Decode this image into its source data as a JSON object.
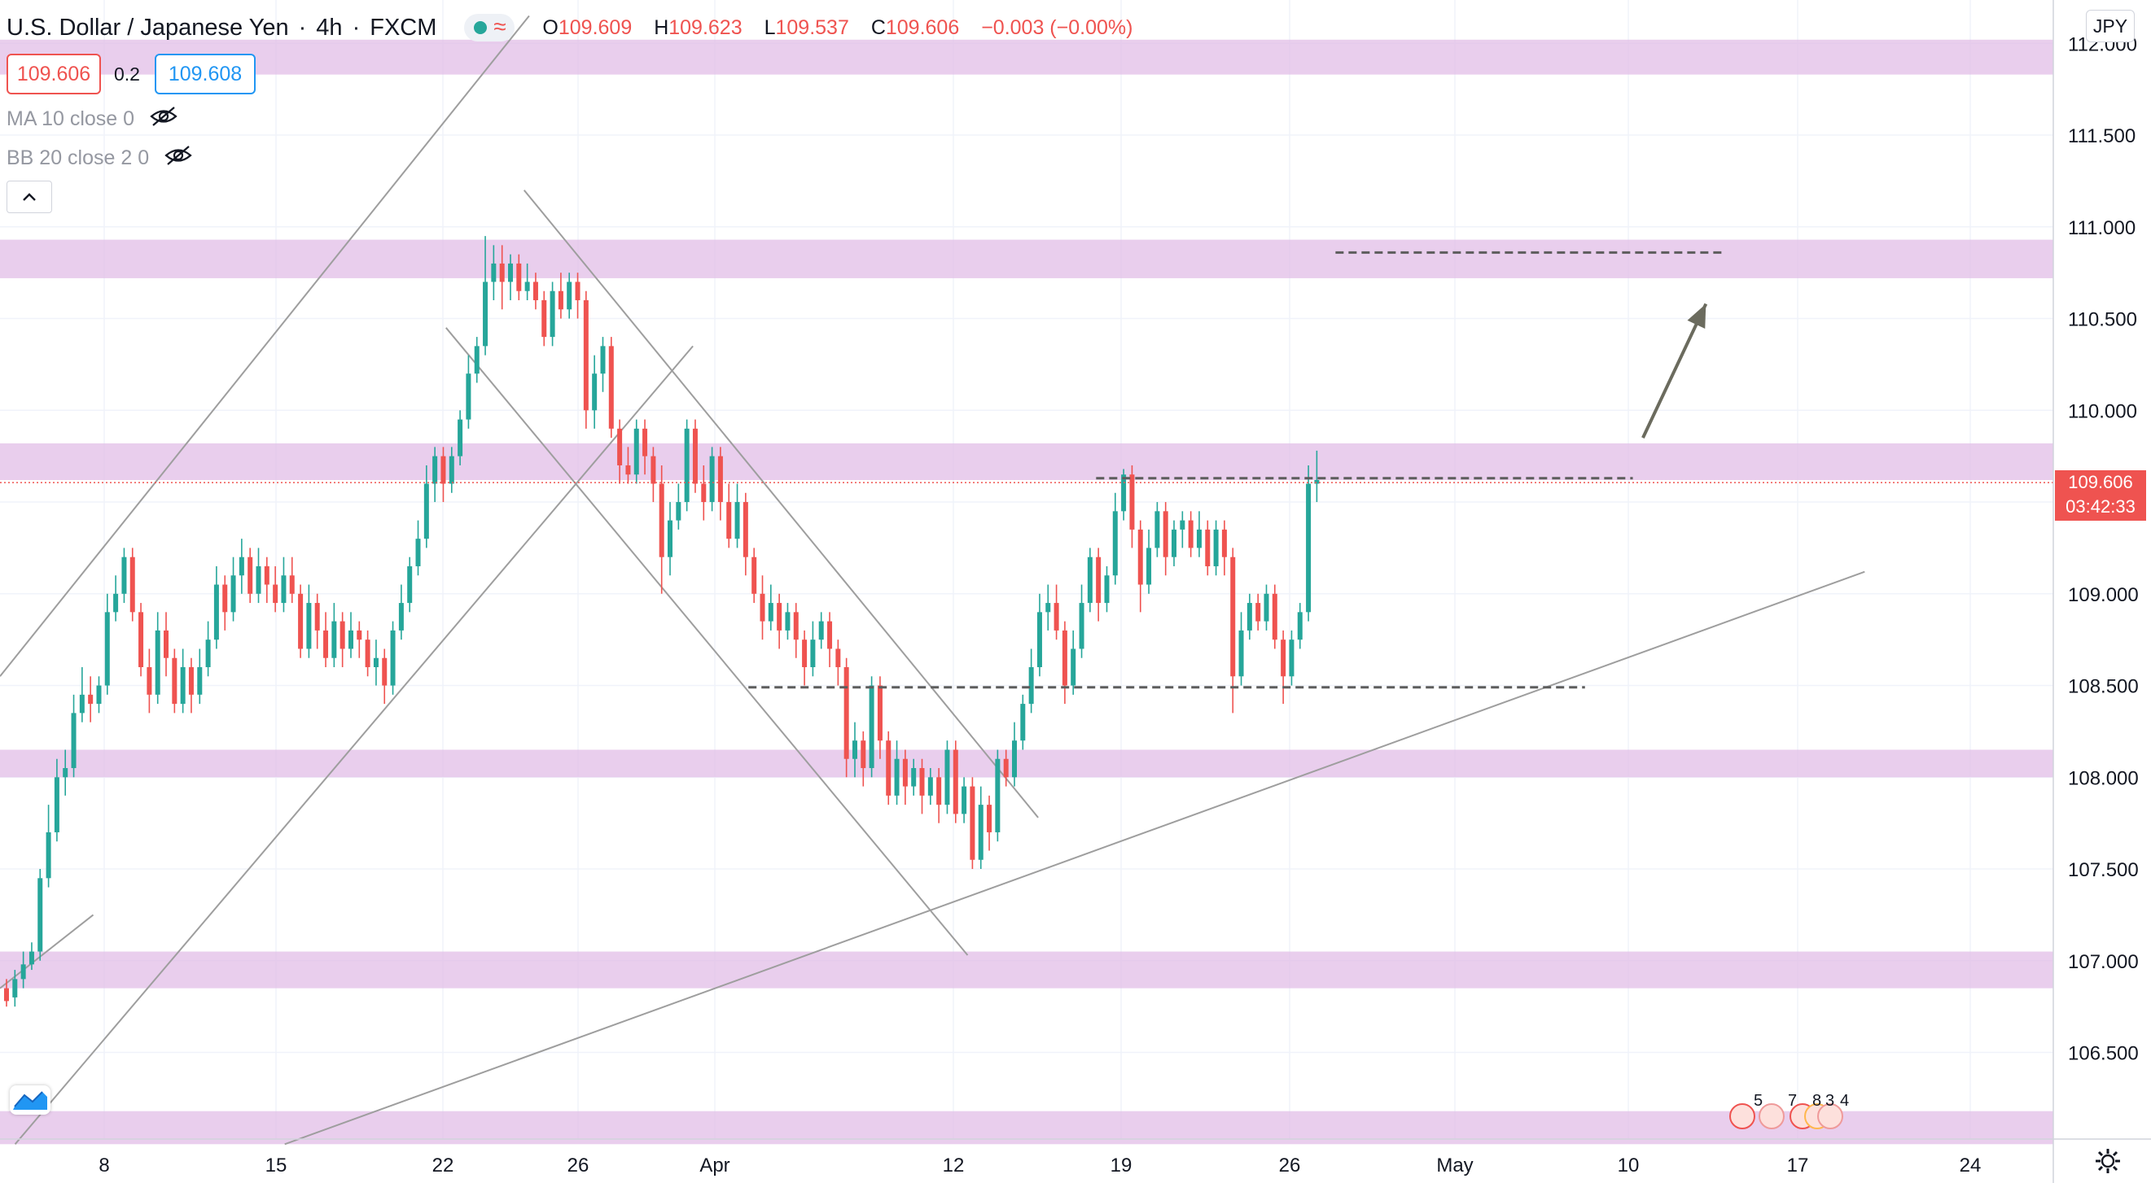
{
  "header": {
    "symbol": "U.S. Dollar / Japanese Yen",
    "interval": "4h",
    "source": "FXCM",
    "ohlc": {
      "o_label": "O",
      "o": "109.609",
      "h_label": "H",
      "h": "109.623",
      "l_label": "L",
      "l": "109.537",
      "c_label": "C",
      "c": "109.606",
      "change": "−0.003 (−0.00%)"
    }
  },
  "trade": {
    "sell_price": "109.606",
    "spread": "0.2",
    "buy_price": "109.608"
  },
  "indicators": [
    {
      "label": "MA 10 close 0"
    },
    {
      "label": "BB 20 close 2 0"
    }
  ],
  "currency_badge": "JPY",
  "last_price": {
    "value": "109.606",
    "countdown": "03:42:33"
  },
  "events": [
    "5",
    "7",
    "8",
    "3",
    "4"
  ],
  "colors": {
    "up": "#26a69a",
    "down": "#ef5350",
    "zone": "#e1bee7",
    "accent": "#2196f3",
    "line": "#9e9e9e"
  },
  "icons": [
    "eye-off-icon",
    "chevron-up-icon",
    "tradingview-logo-icon",
    "gear-icon",
    "arrow-up-icon"
  ],
  "chart_data": {
    "type": "candlestick",
    "title": "U.S. Dollar / Japanese Yen, 4h, FXCM",
    "y_ticks": [
      "106.500",
      "107.000",
      "107.500",
      "108.000",
      "108.500",
      "109.000",
      "109.500",
      "110.000",
      "110.500",
      "111.000",
      "111.500",
      "112.000"
    ],
    "x_ticks": [
      "8",
      "15",
      "22",
      "26",
      "Apr",
      "12",
      "19",
      "26",
      "May",
      "10",
      "17",
      "24"
    ],
    "ylim": [
      106.0,
      112.3
    ],
    "grid": true,
    "support_resistance_zones": [
      [
        111.83,
        112.02
      ],
      [
        110.72,
        110.93
      ],
      [
        109.62,
        109.82
      ],
      [
        108.0,
        108.15
      ],
      [
        106.85,
        107.05
      ],
      [
        106.0,
        106.18
      ]
    ],
    "horizontal_dashed_levels": [
      {
        "from": "Mar 29 day 0",
        "y": 108.49,
        "from_day": 29.7,
        "to_day": 62.9
      },
      {
        "y": 109.63,
        "from_day": 43.5,
        "to_day": 64.8
      },
      {
        "y": 110.86,
        "from_day": 53.0,
        "to_day": 68.5
      }
    ],
    "trendlines": [
      {
        "day1": 0.0,
        "y1": 108.55,
        "day2": 21.0,
        "y2": 112.15
      },
      {
        "day1": 0.6,
        "y1": 106.0,
        "day2": 27.5,
        "y2": 110.35
      },
      {
        "day1": 0.0,
        "y1": 106.85,
        "day2": 3.7,
        "y2": 107.25
      },
      {
        "day1": 11.3,
        "y1": 106.0,
        "day2": 74.0,
        "y2": 109.12
      },
      {
        "day1": 17.7,
        "y1": 110.45,
        "day2": 38.4,
        "y2": 107.03
      },
      {
        "day1": 20.8,
        "y1": 111.2,
        "day2": 41.2,
        "y2": 107.78
      }
    ],
    "projection_arrow": {
      "day1": 65.2,
      "y1": 109.85,
      "day2": 67.7,
      "y2": 110.58
    },
    "candles": [
      [
        0.0,
        106.85,
        106.78,
        106.9,
        106.75
      ],
      [
        0.333,
        106.8,
        106.9,
        106.95,
        106.75
      ],
      [
        0.667,
        106.9,
        106.98,
        107.05,
        106.85
      ],
      [
        1.0,
        106.98,
        107.05,
        107.1,
        106.95
      ],
      [
        1.333,
        107.05,
        107.45,
        107.5,
        107.0
      ],
      [
        1.667,
        107.45,
        107.7,
        107.85,
        107.4
      ],
      [
        2.0,
        107.7,
        108.0,
        108.1,
        107.65
      ],
      [
        2.333,
        108.0,
        108.05,
        108.15,
        107.9
      ],
      [
        2.667,
        108.05,
        108.35,
        108.45,
        108.0
      ],
      [
        3.0,
        108.35,
        108.45,
        108.6,
        108.3
      ],
      [
        3.333,
        108.45,
        108.4,
        108.55,
        108.3
      ],
      [
        3.667,
        108.4,
        108.5,
        108.55,
        108.35
      ],
      [
        4.0,
        108.5,
        108.9,
        109.0,
        108.45
      ],
      [
        4.333,
        108.9,
        109.0,
        109.1,
        108.85
      ],
      [
        4.667,
        109.0,
        109.2,
        109.25,
        108.95
      ],
      [
        5.0,
        109.2,
        108.9,
        109.25,
        108.85
      ],
      [
        5.333,
        108.9,
        108.6,
        108.95,
        108.55
      ],
      [
        5.667,
        108.6,
        108.45,
        108.7,
        108.35
      ],
      [
        6.0,
        108.45,
        108.8,
        108.9,
        108.4
      ],
      [
        6.333,
        108.8,
        108.65,
        108.9,
        108.55
      ],
      [
        6.667,
        108.65,
        108.4,
        108.7,
        108.35
      ],
      [
        7.0,
        108.4,
        108.6,
        108.7,
        108.35
      ],
      [
        7.333,
        108.6,
        108.45,
        108.65,
        108.35
      ],
      [
        7.667,
        108.45,
        108.6,
        108.7,
        108.4
      ],
      [
        8.0,
        108.6,
        108.75,
        108.85,
        108.55
      ],
      [
        8.333,
        108.75,
        109.05,
        109.15,
        108.7
      ],
      [
        8.667,
        109.05,
        108.9,
        109.1,
        108.8
      ],
      [
        9.0,
        108.9,
        109.1,
        109.2,
        108.85
      ],
      [
        9.333,
        109.1,
        109.2,
        109.3,
        109.0
      ],
      [
        9.667,
        109.2,
        109.0,
        109.25,
        108.95
      ],
      [
        10.0,
        109.0,
        109.15,
        109.25,
        108.95
      ],
      [
        10.333,
        109.15,
        109.05,
        109.2,
        108.95
      ],
      [
        10.667,
        109.05,
        108.95,
        109.15,
        108.9
      ],
      [
        11.0,
        108.95,
        109.1,
        109.2,
        108.9
      ],
      [
        11.333,
        109.1,
        109.0,
        109.2,
        108.95
      ],
      [
        11.667,
        109.0,
        108.7,
        109.05,
        108.65
      ],
      [
        12.0,
        108.7,
        108.95,
        109.05,
        108.65
      ],
      [
        12.333,
        108.95,
        108.8,
        109.0,
        108.7
      ],
      [
        12.667,
        108.8,
        108.65,
        108.9,
        108.6
      ],
      [
        13.0,
        108.65,
        108.85,
        108.95,
        108.6
      ],
      [
        13.333,
        108.85,
        108.7,
        108.9,
        108.6
      ],
      [
        13.667,
        108.7,
        108.8,
        108.9,
        108.65
      ],
      [
        14.0,
        108.8,
        108.75,
        108.85,
        108.65
      ],
      [
        14.333,
        108.75,
        108.6,
        108.8,
        108.55
      ],
      [
        14.667,
        108.6,
        108.65,
        108.75,
        108.5
      ],
      [
        15.0,
        108.65,
        108.5,
        108.7,
        108.4
      ],
      [
        15.333,
        108.5,
        108.8,
        108.85,
        108.45
      ],
      [
        15.667,
        108.8,
        108.95,
        109.05,
        108.75
      ],
      [
        16.0,
        108.95,
        109.15,
        109.2,
        108.9
      ],
      [
        16.333,
        109.15,
        109.3,
        109.4,
        109.1
      ],
      [
        16.667,
        109.3,
        109.6,
        109.7,
        109.25
      ],
      [
        17.0,
        109.6,
        109.75,
        109.8,
        109.5
      ],
      [
        17.333,
        109.75,
        109.6,
        109.8,
        109.5
      ],
      [
        17.667,
        109.6,
        109.75,
        109.8,
        109.55
      ],
      [
        18.0,
        109.75,
        109.95,
        110.0,
        109.7
      ],
      [
        18.333,
        109.95,
        110.2,
        110.3,
        109.9
      ],
      [
        18.667,
        110.2,
        110.35,
        110.4,
        110.15
      ],
      [
        19.0,
        110.35,
        110.7,
        110.95,
        110.3
      ],
      [
        19.333,
        110.7,
        110.8,
        110.9,
        110.6
      ],
      [
        19.667,
        110.8,
        110.7,
        110.9,
        110.55
      ],
      [
        20.0,
        110.7,
        110.8,
        110.85,
        110.6
      ],
      [
        20.333,
        110.8,
        110.65,
        110.85,
        110.6
      ],
      [
        20.667,
        110.65,
        110.7,
        110.8,
        110.6
      ],
      [
        21.0,
        110.7,
        110.6,
        110.75,
        110.55
      ],
      [
        21.333,
        110.6,
        110.4,
        110.65,
        110.35
      ],
      [
        21.667,
        110.4,
        110.65,
        110.7,
        110.35
      ],
      [
        22.0,
        110.65,
        110.55,
        110.75,
        110.5
      ],
      [
        22.333,
        110.55,
        110.7,
        110.75,
        110.5
      ],
      [
        22.667,
        110.7,
        110.6,
        110.75,
        110.5
      ],
      [
        23.0,
        110.6,
        110.0,
        110.65,
        109.9
      ],
      [
        23.333,
        110.0,
        110.2,
        110.3,
        109.9
      ],
      [
        23.667,
        110.2,
        110.35,
        110.4,
        110.1
      ],
      [
        24.0,
        110.35,
        109.9,
        110.4,
        109.85
      ],
      [
        24.333,
        109.9,
        109.7,
        109.95,
        109.6
      ],
      [
        24.667,
        109.7,
        109.65,
        109.8,
        109.6
      ],
      [
        25.0,
        109.65,
        109.9,
        109.95,
        109.6
      ],
      [
        25.333,
        109.9,
        109.75,
        109.95,
        109.65
      ],
      [
        25.667,
        109.75,
        109.6,
        109.8,
        109.5
      ],
      [
        26.0,
        109.6,
        109.2,
        109.7,
        109.0
      ],
      [
        26.333,
        109.2,
        109.4,
        109.5,
        109.1
      ],
      [
        26.667,
        109.4,
        109.5,
        109.6,
        109.35
      ],
      [
        27.0,
        109.5,
        109.9,
        109.95,
        109.45
      ],
      [
        27.333,
        109.9,
        109.6,
        109.95,
        109.55
      ],
      [
        27.667,
        109.6,
        109.5,
        109.7,
        109.4
      ],
      [
        28.0,
        109.5,
        109.75,
        109.8,
        109.45
      ],
      [
        28.333,
        109.75,
        109.5,
        109.8,
        109.4
      ],
      [
        28.667,
        109.5,
        109.3,
        109.6,
        109.25
      ],
      [
        29.0,
        109.3,
        109.5,
        109.6,
        109.25
      ],
      [
        29.333,
        109.5,
        109.2,
        109.55,
        109.1
      ],
      [
        29.667,
        109.2,
        109.0,
        109.25,
        108.95
      ],
      [
        30.0,
        109.0,
        108.85,
        109.1,
        108.75
      ],
      [
        30.333,
        108.85,
        108.95,
        109.05,
        108.8
      ],
      [
        30.667,
        108.95,
        108.8,
        109.0,
        108.7
      ],
      [
        31.0,
        108.8,
        108.9,
        108.95,
        108.75
      ],
      [
        31.333,
        108.9,
        108.75,
        108.95,
        108.65
      ],
      [
        31.667,
        108.75,
        108.6,
        108.8,
        108.5
      ],
      [
        32.0,
        108.6,
        108.75,
        108.85,
        108.55
      ],
      [
        32.333,
        108.75,
        108.85,
        108.9,
        108.7
      ],
      [
        32.667,
        108.85,
        108.7,
        108.9,
        108.6
      ],
      [
        33.0,
        108.7,
        108.6,
        108.75,
        108.5
      ],
      [
        33.333,
        108.6,
        108.1,
        108.65,
        108.0
      ],
      [
        33.667,
        108.1,
        108.2,
        108.3,
        108.0
      ],
      [
        34.0,
        108.2,
        108.05,
        108.25,
        107.95
      ],
      [
        34.333,
        108.05,
        108.5,
        108.55,
        108.0
      ],
      [
        34.667,
        108.5,
        108.2,
        108.55,
        108.1
      ],
      [
        35.0,
        108.2,
        107.9,
        108.25,
        107.85
      ],
      [
        35.333,
        107.9,
        108.1,
        108.2,
        107.85
      ],
      [
        35.667,
        108.1,
        107.95,
        108.15,
        107.85
      ],
      [
        36.0,
        107.95,
        108.05,
        108.1,
        107.9
      ],
      [
        36.333,
        108.05,
        107.9,
        108.1,
        107.8
      ],
      [
        36.667,
        107.9,
        108.0,
        108.05,
        107.85
      ],
      [
        37.0,
        108.0,
        107.85,
        108.05,
        107.75
      ],
      [
        37.333,
        107.85,
        108.15,
        108.2,
        107.8
      ],
      [
        37.667,
        108.15,
        107.8,
        108.2,
        107.75
      ],
      [
        38.0,
        107.8,
        107.95,
        108.0,
        107.75
      ],
      [
        38.333,
        107.95,
        107.55,
        108.0,
        107.5
      ],
      [
        38.667,
        107.55,
        107.85,
        107.95,
        107.5
      ],
      [
        39.0,
        107.85,
        107.7,
        107.9,
        107.6
      ],
      [
        39.333,
        107.7,
        108.1,
        108.15,
        107.65
      ],
      [
        39.667,
        108.1,
        108.0,
        108.15,
        107.95
      ],
      [
        40.0,
        108.0,
        108.2,
        108.3,
        107.95
      ],
      [
        40.333,
        108.2,
        108.4,
        108.45,
        108.15
      ],
      [
        40.667,
        108.4,
        108.6,
        108.7,
        108.35
      ],
      [
        41.0,
        108.6,
        108.9,
        109.0,
        108.55
      ],
      [
        41.333,
        108.9,
        108.95,
        109.05,
        108.8
      ],
      [
        41.667,
        108.95,
        108.8,
        109.05,
        108.75
      ],
      [
        42.0,
        108.8,
        108.5,
        108.85,
        108.4
      ],
      [
        42.333,
        108.5,
        108.7,
        108.8,
        108.45
      ],
      [
        42.667,
        108.7,
        108.95,
        109.05,
        108.65
      ],
      [
        43.0,
        108.95,
        109.2,
        109.25,
        108.9
      ],
      [
        43.333,
        109.2,
        108.95,
        109.25,
        108.85
      ],
      [
        43.667,
        108.95,
        109.1,
        109.15,
        108.9
      ],
      [
        44.0,
        109.1,
        109.45,
        109.55,
        109.05
      ],
      [
        44.333,
        109.45,
        109.65,
        109.68,
        109.4
      ],
      [
        44.667,
        109.65,
        109.35,
        109.7,
        109.25
      ],
      [
        45.0,
        109.35,
        109.05,
        109.4,
        108.9
      ],
      [
        45.333,
        109.05,
        109.25,
        109.35,
        109.0
      ],
      [
        45.667,
        109.25,
        109.45,
        109.5,
        109.2
      ],
      [
        46.0,
        109.45,
        109.2,
        109.5,
        109.1
      ],
      [
        46.333,
        109.2,
        109.35,
        109.4,
        109.15
      ],
      [
        46.667,
        109.35,
        109.4,
        109.45,
        109.25
      ],
      [
        47.0,
        109.4,
        109.25,
        109.45,
        109.2
      ],
      [
        47.333,
        109.25,
        109.35,
        109.45,
        109.2
      ],
      [
        47.667,
        109.35,
        109.15,
        109.4,
        109.1
      ],
      [
        48.0,
        109.15,
        109.35,
        109.4,
        109.1
      ],
      [
        48.333,
        109.35,
        109.2,
        109.4,
        109.1
      ],
      [
        48.667,
        109.2,
        108.55,
        109.25,
        108.35
      ],
      [
        49.0,
        108.55,
        108.8,
        108.9,
        108.5
      ],
      [
        49.333,
        108.8,
        108.95,
        109.0,
        108.75
      ],
      [
        49.667,
        108.95,
        108.85,
        109.0,
        108.8
      ],
      [
        50.0,
        108.85,
        109.0,
        109.05,
        108.8
      ],
      [
        50.333,
        109.0,
        108.75,
        109.05,
        108.7
      ],
      [
        50.667,
        108.75,
        108.55,
        108.8,
        108.4
      ],
      [
        51.0,
        108.55,
        108.75,
        108.8,
        108.5
      ],
      [
        51.333,
        108.75,
        108.9,
        108.95,
        108.7
      ],
      [
        51.667,
        108.9,
        109.6,
        109.7,
        108.85
      ],
      [
        52.0,
        109.6,
        109.62,
        109.78,
        109.5
      ]
    ]
  }
}
